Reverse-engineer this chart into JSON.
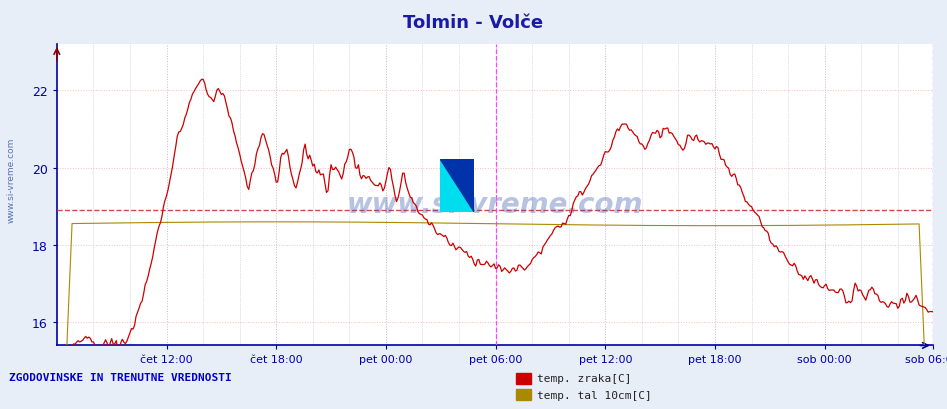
{
  "title": "Tolmin - Volče",
  "title_color": "#1a1aaa",
  "bg_color": "#e8eef8",
  "plot_bg_color": "#ffffff",
  "ylim": [
    15.4,
    23.2
  ],
  "yticks": [
    16,
    18,
    20,
    22
  ],
  "n_points": 576,
  "avg_line_y": 18.9,
  "avg_line_color": "#dd4444",
  "grid_color_h": "#ffbbbb",
  "grid_color_v": "#bbbbdd",
  "line1_color": "#cc0000",
  "line2_color": "#aa8800",
  "watermark": "www.si-vreme.com",
  "footer_text": "ZGODOVINSKE IN TRENUTNE VREDNOSTI",
  "footer_color": "#0000cc",
  "legend_labels": [
    "temp. zraka[C]",
    "temp. tal 10cm[C]"
  ],
  "legend_colors": [
    "#cc0000",
    "#aa8800"
  ],
  "x_major_labels": [
    "čet 12:00",
    "čet 18:00",
    "pet 00:00",
    "pet 06:00",
    "pet 12:00",
    "pet 18:00",
    "sob 00:00",
    "sob 06:00"
  ],
  "n_major": 8,
  "n_minor_per_major": 3
}
